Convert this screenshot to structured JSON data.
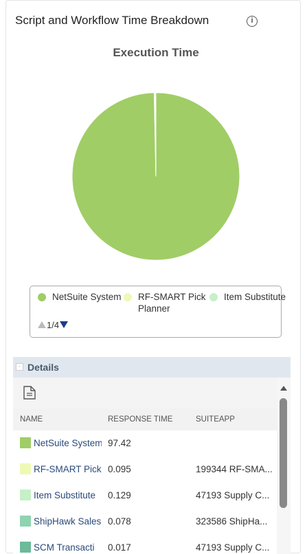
{
  "header": {
    "title": "Script and Workflow Time Breakdown"
  },
  "chart_data": {
    "type": "pie",
    "title": "Execution Time",
    "categories": [
      "NetSuite System",
      "RF-SMART Pick Planner",
      "Item Substitute",
      "ShipHawk Sales",
      "SCM Transacti"
    ],
    "values": [
      97.42,
      0.095,
      0.129,
      0.078,
      0.017
    ],
    "colors": [
      "#a0cd66",
      "#eef9b5",
      "#c6f0c8",
      "#8fd3b0",
      "#6cbb9a"
    ],
    "legend_page": "1/4",
    "legend_items_per_page": 3
  },
  "details": {
    "title": "Details",
    "columns": [
      "NAME",
      "RESPONSE TIME",
      "SUITEAPP"
    ],
    "suiteapp": [
      null,
      "199344 RF-SMA...",
      "47193 Supply C...",
      "323586 ShipHa...",
      "47193 Supply C..."
    ]
  }
}
